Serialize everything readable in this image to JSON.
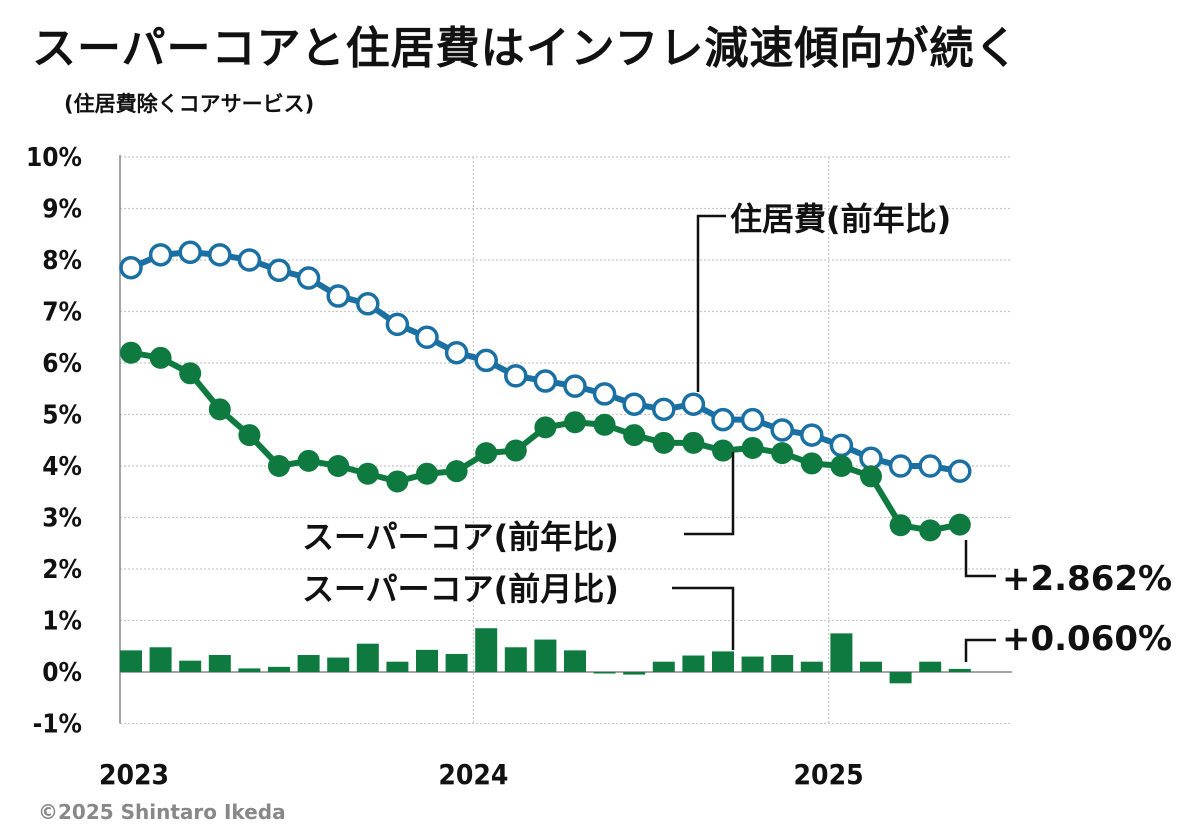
{
  "header": {
    "title": "スーパーコアと住居費はインフレ減速傾向が続く",
    "subtitle": "(住居費除くコアサービス)"
  },
  "footer": {
    "credit": "©2025 Shintaro Ikeda"
  },
  "chart_data": {
    "type": "line",
    "title": "スーパーコアと住居費はインフレ減速傾向が続く",
    "subtitle": "(住居費除くコアサービス)",
    "xlabel": "",
    "ylabel": "",
    "ylim": [
      -1,
      10
    ],
    "y_ticks": [
      "10%",
      "9%",
      "8%",
      "7%",
      "6%",
      "5%",
      "4%",
      "3%",
      "2%",
      "1%",
      "0%",
      "-1%"
    ],
    "x_ticks": [
      "2023",
      "2024",
      "2025"
    ],
    "grid": true,
    "categories": [
      "2023-01",
      "2023-02",
      "2023-03",
      "2023-04",
      "2023-05",
      "2023-06",
      "2023-07",
      "2023-08",
      "2023-09",
      "2023-10",
      "2023-11",
      "2023-12",
      "2024-01",
      "2024-02",
      "2024-03",
      "2024-04",
      "2024-05",
      "2024-06",
      "2024-07",
      "2024-08",
      "2024-09",
      "2024-10",
      "2024-11",
      "2024-12",
      "2025-01",
      "2025-02",
      "2025-03",
      "2025-04",
      "2025-05"
    ],
    "series": [
      {
        "name": "住居費(前年比)",
        "kind": "line-open-marker",
        "color": "#1a6fa3",
        "values": [
          7.85,
          8.1,
          8.15,
          8.1,
          8.0,
          7.8,
          7.65,
          7.3,
          7.15,
          6.75,
          6.5,
          6.2,
          6.05,
          5.75,
          5.65,
          5.55,
          5.4,
          5.2,
          5.1,
          5.2,
          4.9,
          4.9,
          4.7,
          4.6,
          4.4,
          4.15,
          4.0,
          4.0,
          3.9
        ]
      },
      {
        "name": "スーパーコア(前年比)",
        "kind": "line-filled-marker",
        "color": "#0f7a3f",
        "values": [
          6.2,
          6.1,
          5.8,
          5.1,
          4.6,
          4.0,
          4.1,
          4.0,
          3.85,
          3.7,
          3.85,
          3.9,
          4.25,
          4.3,
          4.75,
          4.85,
          4.8,
          4.6,
          4.45,
          4.45,
          4.3,
          4.35,
          4.25,
          4.05,
          4.0,
          3.8,
          2.85,
          2.75,
          2.862
        ]
      },
      {
        "name": "スーパーコア(前月比)",
        "kind": "bar",
        "color": "#0f7a3f",
        "values": [
          0.42,
          0.48,
          0.22,
          0.33,
          0.07,
          0.1,
          0.33,
          0.28,
          0.55,
          0.2,
          0.43,
          0.35,
          0.85,
          0.48,
          0.63,
          0.42,
          -0.02,
          -0.05,
          0.2,
          0.32,
          0.4,
          0.3,
          0.33,
          0.2,
          0.75,
          0.2,
          -0.22,
          0.2,
          0.06
        ]
      }
    ],
    "annotations": [
      {
        "label": "住居費(前年比)",
        "series": 0,
        "index": 19
      },
      {
        "label": "スーパーコア(前年比)",
        "series": 1,
        "index": 20
      },
      {
        "label": "スーパーコア(前月比)",
        "series": 2,
        "index": 20
      },
      {
        "label": "+2.862%",
        "series": 1,
        "index": 28
      },
      {
        "label": "+0.060%",
        "series": 2,
        "index": 28
      }
    ]
  }
}
